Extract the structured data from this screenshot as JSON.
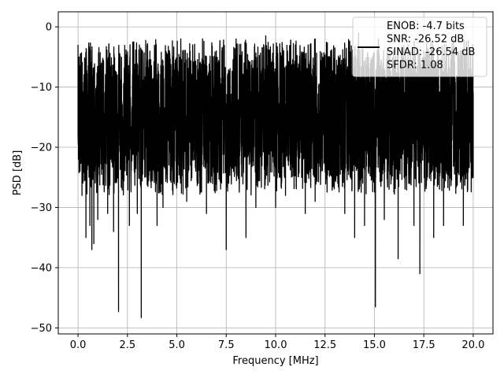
{
  "chart_data": {
    "type": "line",
    "title": "",
    "xlabel": "Frequency [MHz]",
    "ylabel": "PSD [dB]",
    "xlim": [
      -1.0,
      21.0
    ],
    "ylim": [
      -51.0,
      2.5
    ],
    "x_ticks": [
      0.0,
      2.5,
      5.0,
      7.5,
      10.0,
      12.5,
      15.0,
      17.5,
      20.0
    ],
    "x_tick_labels": [
      "0.0",
      "2.5",
      "5.0",
      "7.5",
      "10.0",
      "12.5",
      "15.0",
      "17.5",
      "20.0"
    ],
    "y_ticks": [
      0,
      -10,
      -20,
      -30,
      -40,
      -50
    ],
    "y_tick_labels": [
      "0",
      "−10",
      "−20",
      "−30",
      "−40",
      "−50"
    ],
    "grid": true,
    "legend_position": "top-right",
    "legend_lines": [
      "ENOB: -4.7 bits",
      "SNR: -26.52 dB",
      "SINAD: -26.54 dB",
      "SFDR: 1.08"
    ],
    "series": [
      {
        "color": "#000000",
        "x_range": [
          0.0,
          20.0
        ],
        "noise_floor_band": [
          -25,
          -5
        ],
        "points": [
          [
            0.0,
            -3
          ],
          [
            0.02,
            -22
          ],
          [
            0.05,
            -5
          ],
          [
            0.1,
            -24
          ],
          [
            0.15,
            -6
          ],
          [
            0.2,
            -28
          ],
          [
            0.4,
            -35
          ],
          [
            0.6,
            -33
          ],
          [
            0.7,
            -37
          ],
          [
            0.8,
            -36
          ],
          [
            1.0,
            -32
          ],
          [
            1.5,
            -31
          ],
          [
            1.8,
            -34
          ],
          [
            2.05,
            -47.3
          ],
          [
            2.6,
            -33
          ],
          [
            3.0,
            -31
          ],
          [
            3.2,
            -48.3
          ],
          [
            4.0,
            -33
          ],
          [
            4.3,
            -30
          ],
          [
            5.5,
            -29
          ],
          [
            6.5,
            -31
          ],
          [
            7.5,
            -37
          ],
          [
            8.5,
            -35
          ],
          [
            9.0,
            -30
          ],
          [
            10.0,
            -30
          ],
          [
            10.5,
            -28
          ],
          [
            11.5,
            -31
          ],
          [
            12.0,
            -29
          ],
          [
            13.5,
            -31
          ],
          [
            14.0,
            -35
          ],
          [
            14.5,
            -33
          ],
          [
            15.05,
            -46.5
          ],
          [
            15.5,
            -32
          ],
          [
            16.2,
            -38.5
          ],
          [
            17.0,
            -33
          ],
          [
            17.3,
            -41
          ],
          [
            18.0,
            -35
          ],
          [
            18.5,
            -33
          ],
          [
            19.5,
            -33
          ],
          [
            20.0,
            -25
          ],
          [
            1.0,
            -8
          ],
          [
            2.2,
            -6
          ],
          [
            2.8,
            -5
          ],
          [
            3.5,
            -3
          ],
          [
            4.5,
            -5
          ],
          [
            5.2,
            -2
          ],
          [
            5.8,
            -3
          ],
          [
            6.3,
            -2
          ],
          [
            7.0,
            -4
          ],
          [
            8.0,
            -2
          ],
          [
            9.5,
            -1.5
          ],
          [
            11.0,
            -3
          ],
          [
            12.0,
            -2
          ],
          [
            13.0,
            -3.5
          ],
          [
            14.2,
            -1
          ],
          [
            15.2,
            -2
          ],
          [
            16.4,
            -3.5
          ],
          [
            17.5,
            -4
          ],
          [
            18.2,
            -6
          ],
          [
            19.0,
            -5
          ]
        ]
      }
    ]
  }
}
